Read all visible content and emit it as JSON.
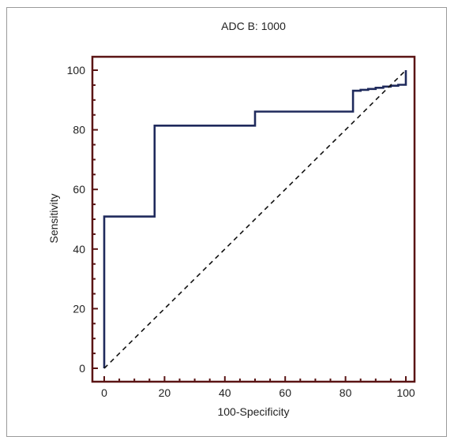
{
  "chart_data": {
    "type": "line",
    "title": "ADC B: 1000",
    "xlabel": "100-Specificity",
    "ylabel": "Sensitivity",
    "xlim": [
      0,
      100
    ],
    "ylim": [
      0,
      100
    ],
    "x_ticks": [
      0,
      20,
      40,
      60,
      80,
      100
    ],
    "y_ticks": [
      0,
      20,
      40,
      60,
      80,
      100
    ],
    "grid": false,
    "legend": "none",
    "series": [
      {
        "style": "solid",
        "color": "#1f2a5c",
        "x": [
          0,
          0,
          16.7,
          16.7,
          50,
          50,
          82.5,
          82.5,
          85,
          85,
          87.5,
          87.5,
          90,
          90,
          92.5,
          92.5,
          95,
          95,
          97.5,
          97.5,
          100,
          100,
          100
        ],
        "y": [
          0,
          50.9,
          50.9,
          81.4,
          81.4,
          86.1,
          86.1,
          93.1,
          93.1,
          93.4,
          93.4,
          93.7,
          93.7,
          94.1,
          94.1,
          94.5,
          94.5,
          94.8,
          94.8,
          95.1,
          95.1,
          97.4,
          100
        ]
      },
      {
        "style": "dashed",
        "color": "#111111",
        "x": [
          0,
          100
        ],
        "y": [
          0,
          100
        ]
      }
    ],
    "colors": {
      "frame": "#5a1414",
      "roc_line": "#1f2a5c",
      "diagonal": "#111111"
    }
  }
}
